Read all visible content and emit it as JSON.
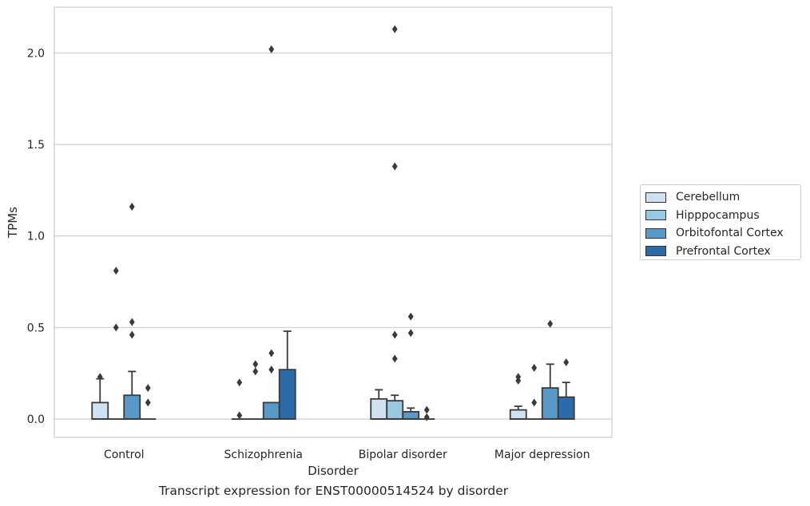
{
  "chart_data": {
    "type": "box",
    "caption": "Transcript expression for ENST00000514524 by disorder",
    "xlabel": "Disorder",
    "ylabel": "TPMs",
    "ylim": [
      -0.1,
      2.25
    ],
    "yticks": [
      "0.0",
      "0.5",
      "1.0",
      "1.5",
      "2.0"
    ],
    "ytick_values": [
      0,
      0.5,
      1.0,
      1.5,
      2.0
    ],
    "grid": "horizontal",
    "legend_position": "right",
    "categories": [
      "Control",
      "Schizophrenia",
      "Bipolar disorder",
      "Major depression"
    ],
    "series": [
      {
        "name": "Cerebellum",
        "color": "#d0e1f2",
        "boxes": [
          {
            "q1": 0,
            "median": 0,
            "q3": 0.09,
            "whisker_low": 0,
            "whisker_high": 0.22,
            "outliers": [
              0.23
            ]
          },
          {
            "q1": 0,
            "median": 0,
            "q3": 0,
            "whisker_low": 0,
            "whisker_high": 0,
            "outliers": [
              0.2,
              0.02
            ]
          },
          {
            "q1": 0,
            "median": 0,
            "q3": 0.11,
            "whisker_low": 0,
            "whisker_high": 0.16,
            "outliers": []
          },
          {
            "q1": 0,
            "median": 0,
            "q3": 0.05,
            "whisker_low": 0,
            "whisker_high": 0.07,
            "outliers": [
              0.23,
              0.21
            ]
          }
        ]
      },
      {
        "name": "Hipppocampus",
        "color": "#9ac8e0",
        "boxes": [
          {
            "q1": 0,
            "median": 0,
            "q3": 0,
            "whisker_low": 0,
            "whisker_high": 0,
            "outliers": [
              0.81,
              0.5
            ]
          },
          {
            "q1": 0,
            "median": 0,
            "q3": 0,
            "whisker_low": 0,
            "whisker_high": 0,
            "outliers": [
              0.3,
              0.26
            ]
          },
          {
            "q1": 0,
            "median": 0,
            "q3": 0.1,
            "whisker_low": 0,
            "whisker_high": 0.13,
            "outliers": [
              2.13,
              1.38,
              0.46,
              0.33
            ]
          },
          {
            "q1": 0,
            "median": 0,
            "q3": 0,
            "whisker_low": 0,
            "whisker_high": 0,
            "outliers": [
              0.28,
              0.09
            ]
          }
        ]
      },
      {
        "name": "Orbitofontal Cortex",
        "color": "#5899c6",
        "boxes": [
          {
            "q1": 0,
            "median": 0,
            "q3": 0.13,
            "whisker_low": 0,
            "whisker_high": 0.26,
            "outliers": [
              1.16,
              0.53,
              0.46
            ]
          },
          {
            "q1": 0,
            "median": 0,
            "q3": 0.09,
            "whisker_low": 0,
            "whisker_high": 0.09,
            "outliers": [
              2.02,
              0.36,
              0.27
            ]
          },
          {
            "q1": 0,
            "median": 0,
            "q3": 0.04,
            "whisker_low": 0,
            "whisker_high": 0.06,
            "outliers": [
              0.56,
              0.47
            ]
          },
          {
            "q1": 0,
            "median": 0,
            "q3": 0.17,
            "whisker_low": 0,
            "whisker_high": 0.3,
            "outliers": [
              0.52
            ]
          }
        ]
      },
      {
        "name": "Prefrontal Cortex",
        "color": "#2d6aa9",
        "boxes": [
          {
            "q1": 0,
            "median": 0,
            "q3": 0,
            "whisker_low": 0,
            "whisker_high": 0,
            "outliers": [
              0.17,
              0.09
            ]
          },
          {
            "q1": 0,
            "median": 0,
            "q3": 0.27,
            "whisker_low": 0,
            "whisker_high": 0.48,
            "outliers": []
          },
          {
            "q1": 0,
            "median": 0,
            "q3": 0,
            "whisker_low": 0,
            "whisker_high": 0,
            "outliers": [
              0.05,
              0.01
            ]
          },
          {
            "q1": 0,
            "median": 0,
            "q3": 0.12,
            "whisker_low": 0,
            "whisker_high": 0.2,
            "outliers": [
              0.31
            ]
          }
        ]
      }
    ]
  }
}
